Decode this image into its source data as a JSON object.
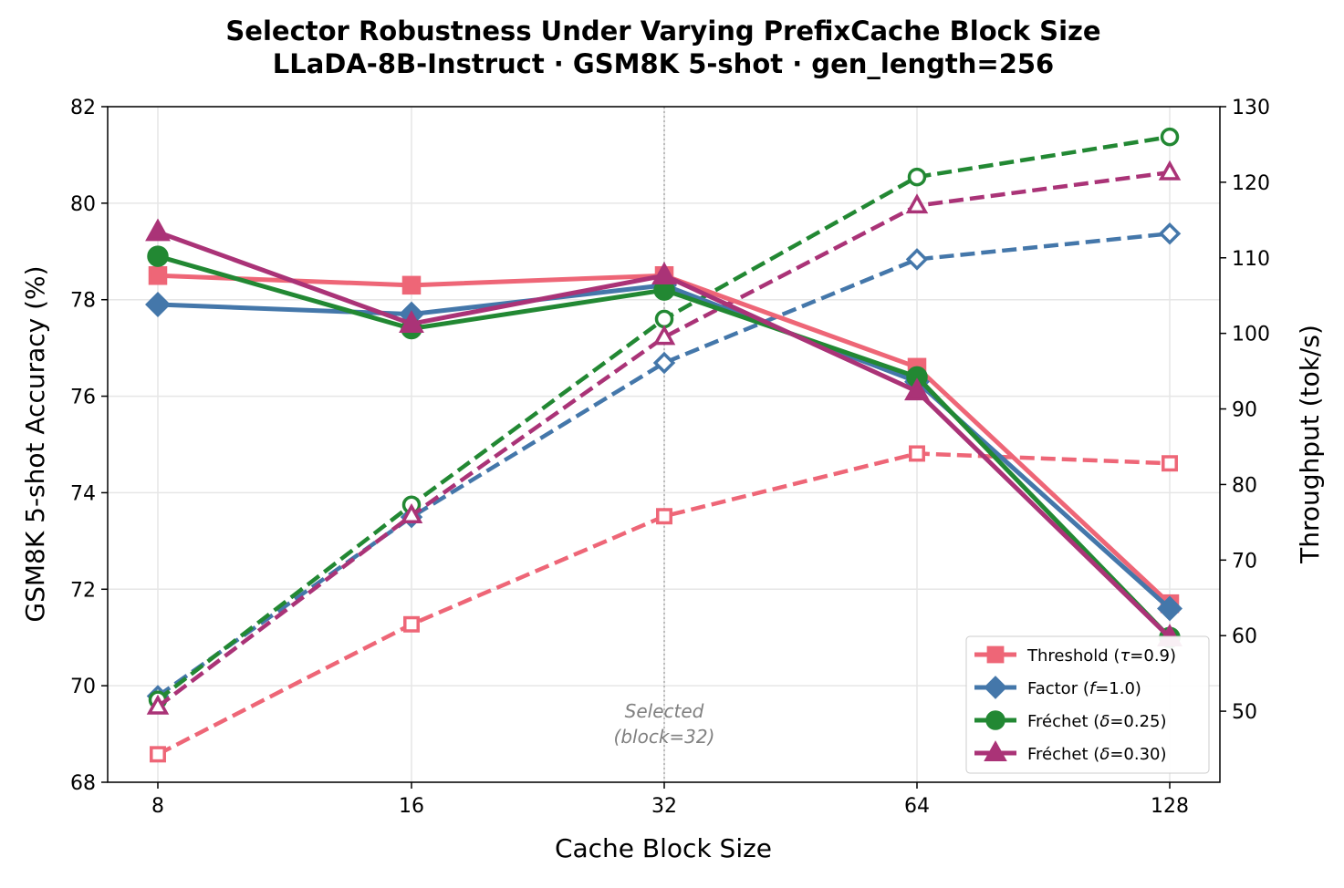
{
  "chart_data": {
    "type": "line",
    "title": "Selector Robustness Under Varying PrefixCache Block Size",
    "subtitle": "LLaDA-8B-Instruct · GSM8K 5-shot · gen_length=256",
    "xlabel": "Cache Block Size",
    "ylabel_left": "GSM8K 5-shot Accuracy (%)",
    "ylabel_right": "Throughput (tok/s)",
    "categories": [
      "8",
      "16",
      "32",
      "64",
      "128"
    ],
    "ylim_left": [
      68,
      82
    ],
    "yticks_left": [
      "68",
      "70",
      "72",
      "74",
      "76",
      "78",
      "80",
      "82"
    ],
    "ylim_right": [
      40.6,
      130
    ],
    "yticks_right": [
      "50",
      "60",
      "70",
      "80",
      "90",
      "100",
      "110",
      "120",
      "130"
    ],
    "grid": true,
    "legend_position": "lower-right",
    "annotation": {
      "x_category": "32",
      "line1": "Selected",
      "line2": "(block=32)"
    },
    "series": [
      {
        "name": "Threshold (τ=0.9)",
        "label_main": "Threshold (",
        "label_sym": "τ",
        "label_rest": "=0.9)",
        "color": "#ee6677",
        "marker": "square",
        "accuracy": [
          78.5,
          78.3,
          78.5,
          76.6,
          71.7
        ],
        "throughput": [
          44.3,
          61.5,
          75.8,
          84.1,
          82.8
        ]
      },
      {
        "name": "Factor (f=1.0)",
        "label_main": "Factor (",
        "label_sym": "f",
        "label_rest": "=1.0)",
        "color": "#4477aa",
        "marker": "diamond",
        "accuracy": [
          77.9,
          77.7,
          78.3,
          76.3,
          71.6
        ],
        "throughput": [
          52.0,
          75.7,
          96.1,
          109.8,
          113.2
        ]
      },
      {
        "name": "Fréchet (δ=0.25)",
        "label_main": "Fréchet (",
        "label_sym": "δ",
        "label_rest": "=0.25)",
        "color": "#228833",
        "marker": "circle",
        "accuracy": [
          78.9,
          77.4,
          78.2,
          76.4,
          71.0
        ],
        "throughput": [
          51.5,
          77.3,
          101.9,
          120.7,
          126.0
        ]
      },
      {
        "name": "Fréchet (δ=0.30)",
        "label_main": "Fréchet (",
        "label_sym": "δ",
        "label_rest": "=0.30)",
        "color": "#aa3377",
        "marker": "triangle",
        "accuracy": [
          79.4,
          77.5,
          78.5,
          76.1,
          71.0
        ],
        "throughput": [
          50.6,
          75.9,
          99.5,
          116.9,
          121.3
        ]
      }
    ]
  }
}
